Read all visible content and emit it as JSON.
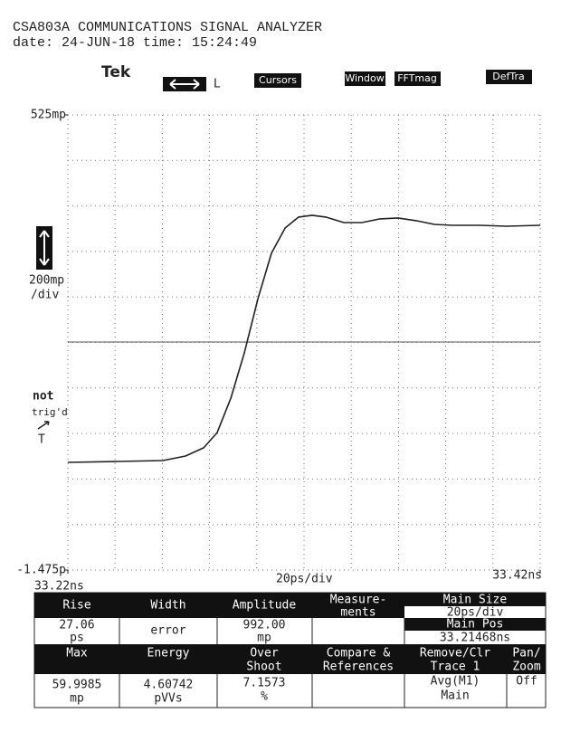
{
  "header": {
    "model": "CSA803A COMMUNICATIONS SIGNAL ANALYZER",
    "date_line": "date: 24-JUN-18 time: 15:24:49"
  },
  "toolbar": {
    "logo": "Tek",
    "cursor_mode": "L",
    "buttons": [
      "Cursors",
      "Window",
      "FFTmag",
      "DefTra"
    ]
  },
  "side": {
    "scale": "200mp",
    "scale_unit": "/div",
    "trigger_state": "not",
    "trigger_word": "trig'd",
    "trigger_marker": "T"
  },
  "chart_data": {
    "type": "line",
    "x": [
      33.22,
      33.2411,
      33.2602,
      33.2698,
      33.2775,
      33.2832,
      33.289,
      33.2947,
      33.3005,
      33.3062,
      33.312,
      33.3177,
      33.3234,
      33.3292,
      33.3369,
      33.3445,
      33.3522,
      33.3598,
      33.3675,
      33.3752,
      33.3828,
      33.3943,
      33.4058,
      33.42
    ],
    "values": [
      -1002,
      -998,
      -994,
      -974,
      -938,
      -871,
      -720,
      -521,
      -282,
      -83,
      28,
      76,
      84,
      76,
      52,
      52,
      68,
      72,
      60,
      44,
      40,
      40,
      36,
      40
    ],
    "color": "#222222",
    "xlim": [
      33.22,
      33.42
    ],
    "ylim": [
      -1475,
      525
    ],
    "xticks": [
      {
        "value": 33.22,
        "label": "33.22ns"
      },
      {
        "value": 33.42,
        "label": "33.42ns"
      }
    ],
    "yticks": [
      {
        "value": -1475,
        "label": "-1.475p"
      },
      {
        "value": 525,
        "label": "525mp"
      }
    ],
    "x_scale_label": "20ps/div"
  },
  "table": {
    "rows": [
      [
        [
          "Rise"
        ],
        [
          "Width"
        ],
        [
          "Amplitude"
        ],
        [
          "Measure-",
          "ments"
        ]
      ],
      [
        [
          "27.06",
          "ps"
        ],
        [
          "error"
        ],
        [
          "992.00",
          "mp"
        ]
      ],
      [
        [
          "Max"
        ],
        [
          "Energy"
        ],
        [
          "Over",
          "Shoot"
        ],
        [
          "Compare &",
          "References"
        ],
        [
          "Remove/Clr",
          "Trace 1"
        ],
        [
          "Pan/",
          "Zoom"
        ]
      ],
      [
        [
          "59.9985",
          "mp"
        ],
        [
          "4.60742",
          "pVVs"
        ],
        [
          "7.1573",
          "%"
        ],
        [
          "Avg(M1)",
          "Main"
        ],
        [
          "Off"
        ]
      ]
    ],
    "main_size_label": "Main Size",
    "main_size": "20ps/div",
    "main_pos_label": "Main Pos",
    "main_pos": "33.21468ns"
  }
}
